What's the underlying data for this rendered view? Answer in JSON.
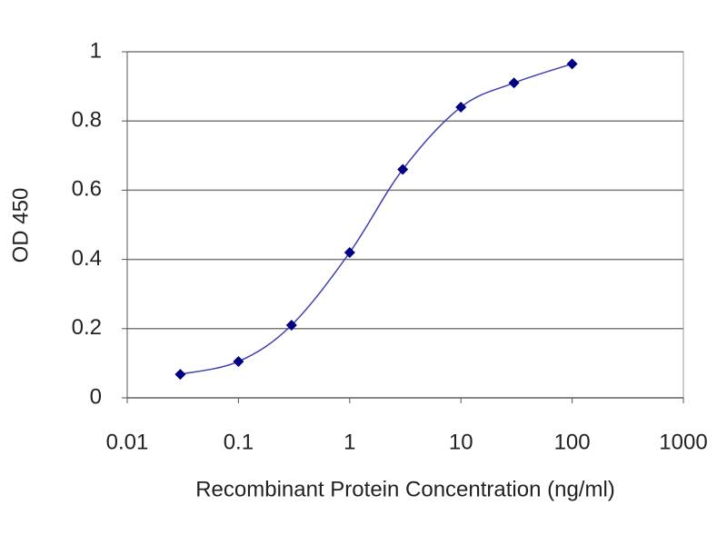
{
  "chart_data": {
    "type": "line",
    "x_label": "Recombinant Protein Concentration (ng/ml)",
    "y_label": "OD 450",
    "x": [
      0.03,
      0.1,
      0.3,
      1,
      3,
      10,
      30,
      100
    ],
    "series": [
      {
        "name": "OD 450",
        "color": "#000080",
        "line_color": "#3f3fb0",
        "values": [
          0.068,
          0.105,
          0.21,
          0.42,
          0.66,
          0.84,
          0.91,
          0.965
        ]
      }
    ],
    "xscale": "log",
    "xlim": [
      0.01,
      1000
    ],
    "xticks": [
      0.01,
      0.1,
      1,
      10,
      100,
      1000
    ],
    "ylim": [
      0,
      1
    ],
    "yticks": [
      0,
      0.2,
      0.4,
      0.6,
      0.8,
      1
    ],
    "grid": true
  }
}
